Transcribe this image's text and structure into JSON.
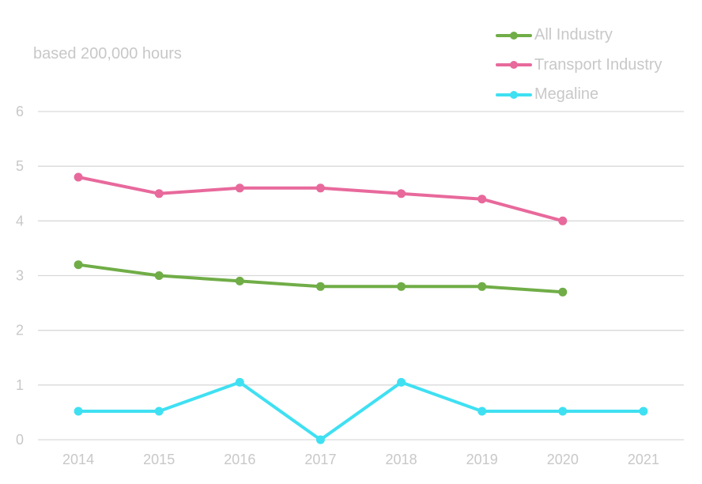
{
  "chart_data": {
    "type": "line",
    "subtitle": "based 200,000 hours",
    "categories": [
      "2014",
      "2015",
      "2016",
      "2017",
      "2018",
      "2019",
      "2020",
      "2021"
    ],
    "ylim": [
      0,
      6
    ],
    "yticks": [
      0,
      1,
      2,
      3,
      4,
      5,
      6
    ],
    "grid": true,
    "legend_position": "top-right",
    "series": [
      {
        "name": "All Industry",
        "color": "#70ad47",
        "values": [
          3.2,
          3.0,
          2.9,
          2.8,
          2.8,
          2.8,
          2.7,
          null
        ]
      },
      {
        "name": "Transport Industry",
        "color": "#e8699c",
        "values": [
          4.8,
          4.5,
          4.6,
          4.6,
          4.5,
          4.4,
          4.0,
          null
        ]
      },
      {
        "name": "Megaline",
        "color": "#3fe0f2",
        "values": [
          0.52,
          0.52,
          1.05,
          0.0,
          1.05,
          0.52,
          0.52,
          0.52
        ]
      }
    ]
  }
}
